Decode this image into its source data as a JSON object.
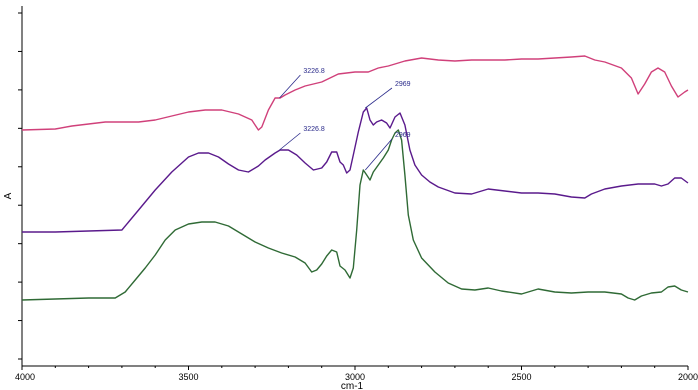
{
  "chart_data": {
    "type": "line",
    "title": "",
    "xlabel": "cm-1",
    "ylabel": "A",
    "xlim": [
      4000,
      2000
    ],
    "x_reversed": true,
    "grid": false,
    "x_ticks": [
      {
        "value": 4000,
        "label": "4000"
      },
      {
        "value": 3500,
        "label": "3500"
      },
      {
        "value": 3000,
        "label": "3000"
      },
      {
        "value": 2500,
        "label": "2500"
      },
      {
        "value": 2000,
        "label": "2000"
      }
    ],
    "y_tick_count": 10,
    "series": [
      {
        "color": "#d0407a",
        "points": [
          [
            4000,
            130
          ],
          [
            3900,
            129
          ],
          [
            3850,
            126
          ],
          [
            3800,
            124
          ],
          [
            3750,
            122
          ],
          [
            3700,
            122
          ],
          [
            3650,
            122
          ],
          [
            3600,
            120
          ],
          [
            3550,
            116
          ],
          [
            3500,
            112
          ],
          [
            3450,
            110
          ],
          [
            3400,
            110
          ],
          [
            3350,
            114
          ],
          [
            3310,
            120
          ],
          [
            3290,
            130
          ],
          [
            3280,
            127
          ],
          [
            3260,
            110
          ],
          [
            3240,
            98
          ],
          [
            3225,
            98
          ],
          [
            3210,
            95
          ],
          [
            3180,
            90
          ],
          [
            3150,
            86
          ],
          [
            3100,
            82
          ],
          [
            3050,
            74
          ],
          [
            3000,
            72
          ],
          [
            2960,
            72
          ],
          [
            2930,
            68
          ],
          [
            2900,
            66
          ],
          [
            2850,
            61
          ],
          [
            2800,
            58
          ],
          [
            2750,
            60
          ],
          [
            2700,
            61
          ],
          [
            2650,
            60
          ],
          [
            2600,
            60
          ],
          [
            2550,
            60
          ],
          [
            2500,
            59
          ],
          [
            2450,
            59
          ],
          [
            2400,
            58
          ],
          [
            2350,
            57
          ],
          [
            2310,
            56
          ],
          [
            2280,
            60
          ],
          [
            2250,
            62
          ],
          [
            2200,
            68
          ],
          [
            2170,
            78
          ],
          [
            2150,
            94
          ],
          [
            2130,
            84
          ],
          [
            2110,
            72
          ],
          [
            2090,
            68
          ],
          [
            2070,
            72
          ],
          [
            2050,
            86
          ],
          [
            2030,
            97
          ],
          [
            2010,
            92
          ],
          [
            2000,
            90
          ]
        ]
      },
      {
        "color": "#5a1a8c",
        "points": [
          [
            4000,
            232
          ],
          [
            3900,
            232
          ],
          [
            3800,
            231
          ],
          [
            3700,
            230
          ],
          [
            3650,
            210
          ],
          [
            3600,
            190
          ],
          [
            3550,
            172
          ],
          [
            3500,
            157
          ],
          [
            3470,
            153
          ],
          [
            3440,
            153
          ],
          [
            3410,
            157
          ],
          [
            3380,
            164
          ],
          [
            3350,
            170
          ],
          [
            3320,
            172
          ],
          [
            3290,
            166
          ],
          [
            3270,
            160
          ],
          [
            3240,
            153
          ],
          [
            3225,
            150
          ],
          [
            3200,
            150
          ],
          [
            3175,
            155
          ],
          [
            3150,
            163
          ],
          [
            3125,
            170
          ],
          [
            3100,
            168
          ],
          [
            3085,
            162
          ],
          [
            3070,
            152
          ],
          [
            3055,
            152
          ],
          [
            3045,
            162
          ],
          [
            3035,
            165
          ],
          [
            3025,
            173
          ],
          [
            3015,
            170
          ],
          [
            3005,
            155
          ],
          [
            2990,
            132
          ],
          [
            2975,
            112
          ],
          [
            2965,
            108
          ],
          [
            2955,
            120
          ],
          [
            2945,
            125
          ],
          [
            2935,
            122
          ],
          [
            2920,
            120
          ],
          [
            2905,
            123
          ],
          [
            2895,
            128
          ],
          [
            2880,
            117
          ],
          [
            2865,
            113
          ],
          [
            2850,
            125
          ],
          [
            2835,
            150
          ],
          [
            2820,
            165
          ],
          [
            2800,
            175
          ],
          [
            2775,
            182
          ],
          [
            2750,
            187
          ],
          [
            2700,
            193
          ],
          [
            2650,
            194
          ],
          [
            2600,
            189
          ],
          [
            2550,
            191
          ],
          [
            2500,
            193
          ],
          [
            2450,
            193
          ],
          [
            2400,
            194
          ],
          [
            2350,
            197
          ],
          [
            2310,
            198
          ],
          [
            2290,
            194
          ],
          [
            2250,
            189
          ],
          [
            2200,
            186
          ],
          [
            2150,
            184
          ],
          [
            2100,
            184
          ],
          [
            2080,
            186
          ],
          [
            2060,
            184
          ],
          [
            2040,
            178
          ],
          [
            2020,
            178
          ],
          [
            2000,
            183
          ]
        ]
      },
      {
        "color": "#2f6a35",
        "points": [
          [
            4000,
            300
          ],
          [
            3900,
            299
          ],
          [
            3800,
            298
          ],
          [
            3720,
            298
          ],
          [
            3690,
            292
          ],
          [
            3660,
            280
          ],
          [
            3630,
            268
          ],
          [
            3600,
            255
          ],
          [
            3570,
            240
          ],
          [
            3540,
            230
          ],
          [
            3500,
            224
          ],
          [
            3460,
            222
          ],
          [
            3420,
            222
          ],
          [
            3380,
            226
          ],
          [
            3340,
            234
          ],
          [
            3300,
            242
          ],
          [
            3260,
            248
          ],
          [
            3220,
            253
          ],
          [
            3180,
            257
          ],
          [
            3150,
            263
          ],
          [
            3130,
            272
          ],
          [
            3115,
            270
          ],
          [
            3100,
            264
          ],
          [
            3085,
            256
          ],
          [
            3070,
            250
          ],
          [
            3055,
            252
          ],
          [
            3045,
            266
          ],
          [
            3030,
            270
          ],
          [
            3015,
            278
          ],
          [
            3005,
            268
          ],
          [
            2995,
            230
          ],
          [
            2985,
            185
          ],
          [
            2975,
            170
          ],
          [
            2965,
            175
          ],
          [
            2955,
            180
          ],
          [
            2945,
            172
          ],
          [
            2930,
            165
          ],
          [
            2915,
            158
          ],
          [
            2900,
            150
          ],
          [
            2890,
            140
          ],
          [
            2880,
            133
          ],
          [
            2870,
            130
          ],
          [
            2860,
            140
          ],
          [
            2850,
            175
          ],
          [
            2840,
            215
          ],
          [
            2825,
            240
          ],
          [
            2800,
            258
          ],
          [
            2760,
            272
          ],
          [
            2720,
            283
          ],
          [
            2680,
            289
          ],
          [
            2640,
            290
          ],
          [
            2600,
            288
          ],
          [
            2560,
            291
          ],
          [
            2500,
            294
          ],
          [
            2450,
            289
          ],
          [
            2400,
            292
          ],
          [
            2350,
            293
          ],
          [
            2300,
            292
          ],
          [
            2250,
            292
          ],
          [
            2200,
            294
          ],
          [
            2180,
            298
          ],
          [
            2160,
            300
          ],
          [
            2140,
            296
          ],
          [
            2110,
            293
          ],
          [
            2080,
            292
          ],
          [
            2060,
            287
          ],
          [
            2040,
            286
          ],
          [
            2020,
            290
          ],
          [
            2000,
            292
          ]
        ]
      }
    ],
    "annotations": [
      {
        "text": "3226.8",
        "color": "#2a2a8a",
        "x": 3226.8,
        "y": 98,
        "label_x": 3155,
        "label_y": 73
      },
      {
        "text": "2969",
        "color": "#2a2a8a",
        "x": 2969,
        "y": 108,
        "label_x": 2880,
        "label_y": 86
      },
      {
        "text": "3226.8",
        "color": "#2a2a8a",
        "x": 3226.8,
        "y": 150,
        "label_x": 3155,
        "label_y": 131
      },
      {
        "text": "2969",
        "color": "#2a2a8a",
        "x": 2969,
        "y": 170,
        "label_x": 2880,
        "label_y": 137
      }
    ]
  }
}
